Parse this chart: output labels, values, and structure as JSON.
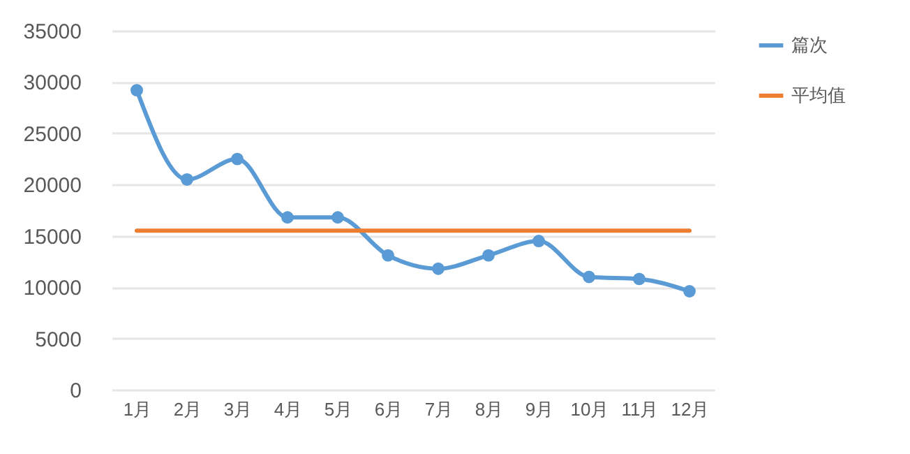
{
  "chart_data": {
    "type": "line",
    "categories": [
      "1月",
      "2月",
      "3月",
      "4月",
      "5月",
      "6月",
      "7月",
      "8月",
      "9月",
      "10月",
      "11月",
      "12月"
    ],
    "series": [
      {
        "name": "篇次",
        "color": "#5b9bd5",
        "marker": "circle",
        "values": [
          29200,
          20500,
          22500,
          16800,
          16800,
          13100,
          11800,
          13100,
          14500,
          11000,
          10800,
          9600
        ]
      },
      {
        "name": "平均值",
        "color": "#ed7d31",
        "marker": "none",
        "values": [
          15500,
          15500,
          15500,
          15500,
          15500,
          15500,
          15500,
          15500,
          15500,
          15500,
          15500,
          15500
        ]
      }
    ],
    "ylim": [
      0,
      35000
    ],
    "yticks": [
      0,
      5000,
      10000,
      15000,
      20000,
      25000,
      30000,
      35000
    ],
    "grid": "y",
    "legend": "right"
  }
}
